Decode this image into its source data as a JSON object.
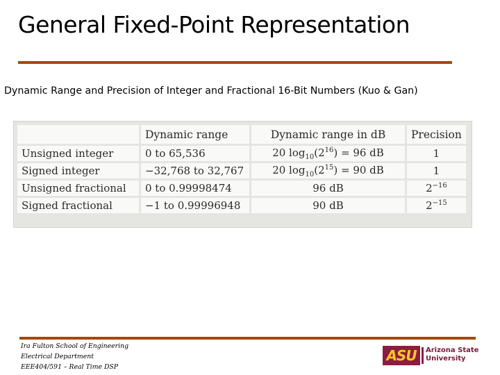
{
  "slide": {
    "title": "General Fixed-Point Representation",
    "subtitle": "Dynamic Range and Precision of Integer and Fractional 16-Bit Numbers (Kuo & Gan)"
  },
  "table": {
    "headers": [
      "",
      "Dynamic range",
      "Dynamic range in dB",
      "Precision"
    ],
    "rows": [
      {
        "type": "Unsigned integer",
        "range": "0 to 65,536",
        "db": {
          "pre": "20 log",
          "sub": "10",
          "open": "(2",
          "sup": "16",
          "post": ") = 96 dB"
        },
        "precision": {
          "base": "1",
          "sup": ""
        }
      },
      {
        "type": "Signed integer",
        "range": "−32,768 to 32,767",
        "db": {
          "pre": "20 log",
          "sub": "10",
          "open": "(2",
          "sup": "15",
          "post": ") = 90 dB"
        },
        "precision": {
          "base": "1",
          "sup": ""
        }
      },
      {
        "type": "Unsigned fractional",
        "range": "0 to 0.99998474",
        "db_text": "96 dB",
        "precision": {
          "base": "2",
          "sup": "−16"
        }
      },
      {
        "type": "Signed fractional",
        "range": "−1 to 0.99996948",
        "db_text": "90 dB",
        "precision": {
          "base": "2",
          "sup": "−15"
        }
      }
    ]
  },
  "footer": {
    "lines": [
      "Ira Fulton School of Engineering",
      "Electrical Department",
      "EEE404/591 – Real Time DSP"
    ]
  },
  "logo": {
    "mark": "ASU",
    "line1": "Arizona State",
    "line2": "University"
  },
  "colors": {
    "rule": "#a14a06",
    "asu_maroon": "#8c1d40",
    "asu_gold": "#ffc627"
  }
}
